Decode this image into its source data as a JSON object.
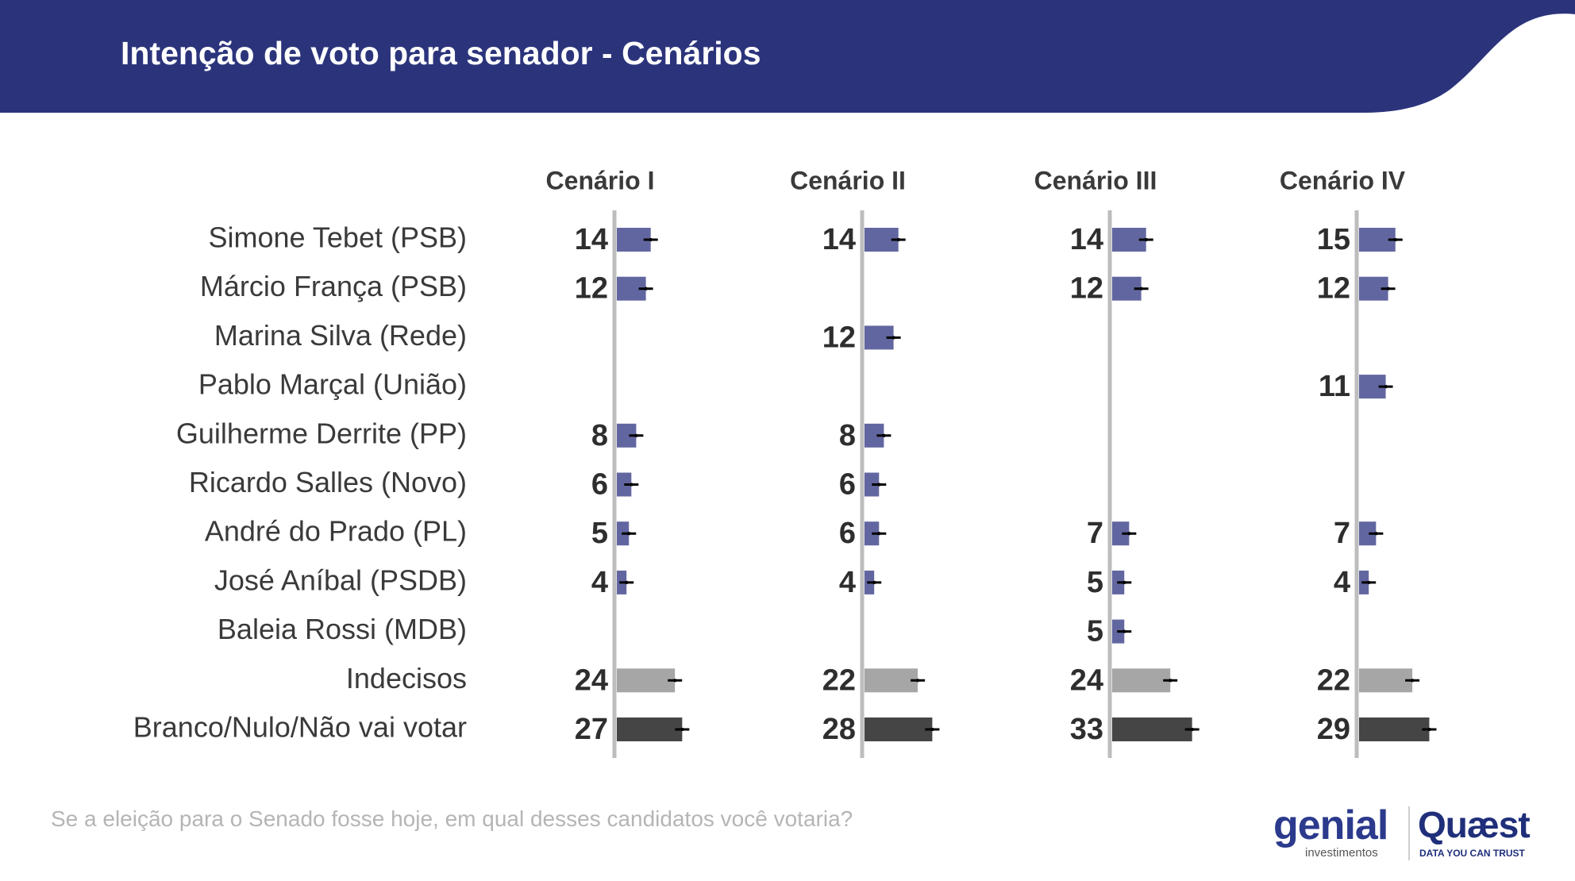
{
  "title": "Intenção de voto para senador - Cenários",
  "question": "Se a eleição para o Senado fosse hoje, em qual desses candidatos você votaria?",
  "logos": {
    "genial": "genial",
    "genial_sub": "investimentos",
    "quaest": "Quæst",
    "quaest_sub": "DATA YOU CAN TRUST"
  },
  "colors": {
    "header": "#2b347b",
    "candidate_bar": "#6266a0",
    "undecided_bar": "#a6a6a6",
    "null_bar": "#454545",
    "axis": "#bdbdbd"
  },
  "chart_data": {
    "type": "bar",
    "orientation": "horizontal",
    "title": "Intenção de voto para senador - Cenários",
    "categories": [
      "Simone Tebet (PSB)",
      "Márcio França (PSB)",
      "Marina Silva (Rede)",
      "Pablo Marçal (União)",
      "Guilherme Derrite (PP)",
      "Ricardo Salles (Novo)",
      "André do Prado (PL)",
      "José Aníbal (PSDB)",
      "Baleia Rossi (MDB)",
      "Indecisos",
      "Branco/Nulo/Não vai votar"
    ],
    "series": [
      {
        "name": "Cenário I",
        "values": [
          14,
          12,
          null,
          null,
          8,
          6,
          5,
          4,
          null,
          24,
          27
        ]
      },
      {
        "name": "Cenário II",
        "values": [
          14,
          null,
          12,
          null,
          8,
          6,
          6,
          4,
          null,
          22,
          28
        ]
      },
      {
        "name": "Cenário III",
        "values": [
          14,
          12,
          null,
          null,
          null,
          null,
          7,
          5,
          5,
          24,
          33
        ]
      },
      {
        "name": "Cenário IV",
        "values": [
          15,
          12,
          null,
          11,
          null,
          null,
          7,
          4,
          null,
          22,
          29
        ]
      }
    ],
    "error_bars": true,
    "xlim": [
      0,
      40
    ]
  }
}
